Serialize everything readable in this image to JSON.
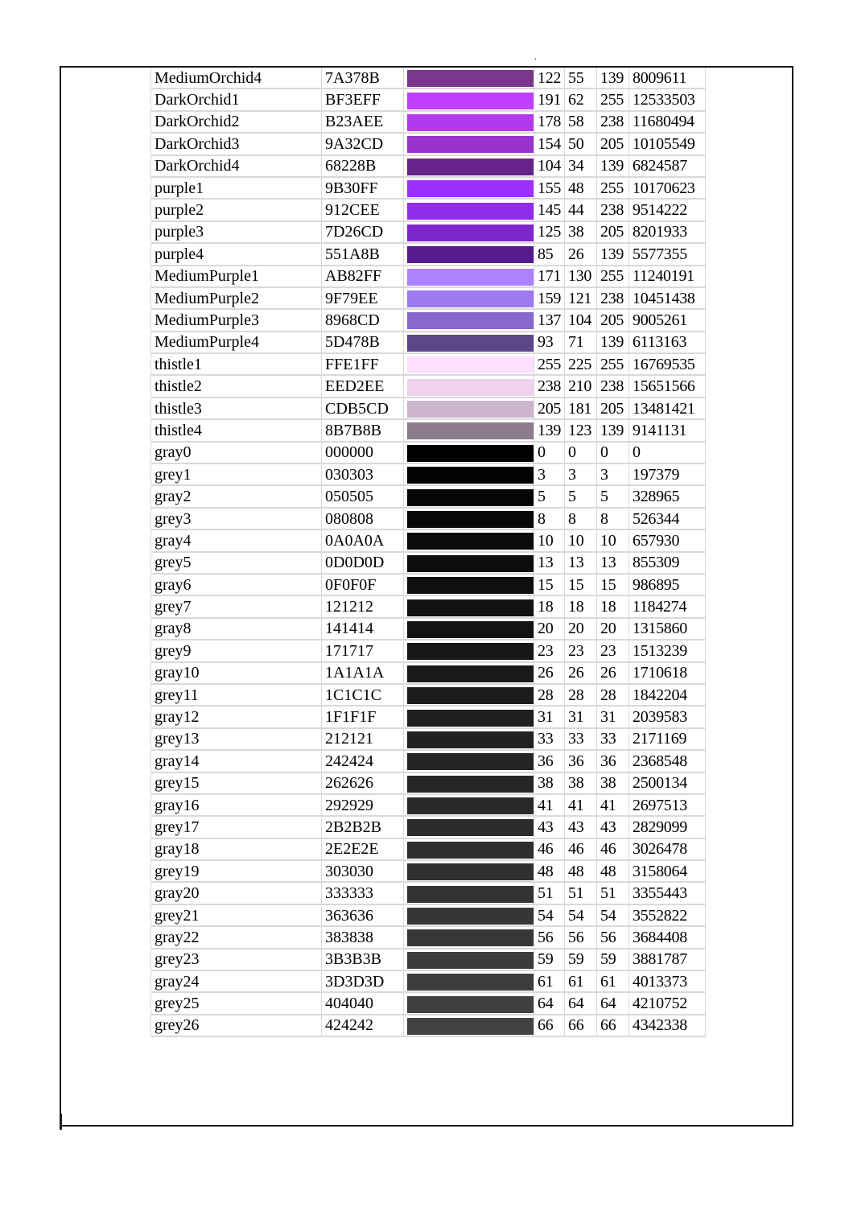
{
  "header_mark": ".",
  "colors": [
    {
      "name": "MediumOrchid4",
      "hex": "7A378B",
      "r": "122",
      "g": "55",
      "b": "139",
      "dec": "8009611",
      "swatch": "#7A378B"
    },
    {
      "name": "DarkOrchid1",
      "hex": "BF3EFF",
      "r": "191",
      "g": "62",
      "b": "255",
      "dec": "12533503",
      "swatch": "#BF3EFF"
    },
    {
      "name": "DarkOrchid2",
      "hex": "B23AEE",
      "r": "178",
      "g": "58",
      "b": "238",
      "dec": "11680494",
      "swatch": "#B23AEE"
    },
    {
      "name": "DarkOrchid3",
      "hex": "9A32CD",
      "r": "154",
      "g": "50",
      "b": "205",
      "dec": "10105549",
      "swatch": "#9A32CD"
    },
    {
      "name": "DarkOrchid4",
      "hex": "68228B",
      "r": "104",
      "g": "34",
      "b": "139",
      "dec": "6824587",
      "swatch": "#68228B"
    },
    {
      "name": "purple1",
      "hex": "9B30FF",
      "r": "155",
      "g": "48",
      "b": "255",
      "dec": "10170623",
      "swatch": "#9B30FF"
    },
    {
      "name": "purple2",
      "hex": "912CEE",
      "r": "145",
      "g": "44",
      "b": "238",
      "dec": "9514222",
      "swatch": "#912CEE"
    },
    {
      "name": "purple3",
      "hex": "7D26CD",
      "r": "125",
      "g": "38",
      "b": "205",
      "dec": "8201933",
      "swatch": "#7D26CD"
    },
    {
      "name": "purple4",
      "hex": "551A8B",
      "r": "85",
      "g": "26",
      "b": "139",
      "dec": "5577355",
      "swatch": "#551A8B"
    },
    {
      "name": "MediumPurple1",
      "hex": "AB82FF",
      "r": "171",
      "g": "130",
      "b": "255",
      "dec": "11240191",
      "swatch": "#AB82FF"
    },
    {
      "name": "MediumPurple2",
      "hex": "9F79EE",
      "r": "159",
      "g": "121",
      "b": "238",
      "dec": "10451438",
      "swatch": "#9F79EE"
    },
    {
      "name": "MediumPurple3",
      "hex": "8968CD",
      "r": "137",
      "g": "104",
      "b": "205",
      "dec": "9005261",
      "swatch": "#8968CD"
    },
    {
      "name": "MediumPurple4",
      "hex": "5D478B",
      "r": "93",
      "g": "71",
      "b": "139",
      "dec": "6113163",
      "swatch": "#5D478B"
    },
    {
      "name": "thistle1",
      "hex": "FFE1FF",
      "r": "255",
      "g": "225",
      "b": "255",
      "dec": "16769535",
      "swatch": "#FFE1FF"
    },
    {
      "name": "thistle2",
      "hex": "EED2EE",
      "r": "238",
      "g": "210",
      "b": "238",
      "dec": "15651566",
      "swatch": "#EED2EE"
    },
    {
      "name": "thistle3",
      "hex": "CDB5CD",
      "r": "205",
      "g": "181",
      "b": "205",
      "dec": "13481421",
      "swatch": "#CDB5CD"
    },
    {
      "name": "thistle4",
      "hex": "8B7B8B",
      "r": "139",
      "g": "123",
      "b": "139",
      "dec": "9141131",
      "swatch": "#8B7B8B"
    },
    {
      "name": "gray0",
      "hex": "000000",
      "r": "0",
      "g": "0",
      "b": "0",
      "dec": "0",
      "swatch": "#000000"
    },
    {
      "name": "grey1",
      "hex": "030303",
      "r": "3",
      "g": "3",
      "b": "3",
      "dec": "197379",
      "swatch": "#030303"
    },
    {
      "name": "gray2",
      "hex": "050505",
      "r": "5",
      "g": "5",
      "b": "5",
      "dec": "328965",
      "swatch": "#050505"
    },
    {
      "name": "grey3",
      "hex": "080808",
      "r": "8",
      "g": "8",
      "b": "8",
      "dec": "526344",
      "swatch": "#080808"
    },
    {
      "name": "gray4",
      "hex": "0A0A0A",
      "r": "10",
      "g": "10",
      "b": "10",
      "dec": "657930",
      "swatch": "#0A0A0A"
    },
    {
      "name": "grey5",
      "hex": "0D0D0D",
      "r": "13",
      "g": "13",
      "b": "13",
      "dec": "855309",
      "swatch": "#0D0D0D"
    },
    {
      "name": "gray6",
      "hex": "0F0F0F",
      "r": "15",
      "g": "15",
      "b": "15",
      "dec": "986895",
      "swatch": "#0F0F0F"
    },
    {
      "name": "grey7",
      "hex": "121212",
      "r": "18",
      "g": "18",
      "b": "18",
      "dec": "1184274",
      "swatch": "#121212"
    },
    {
      "name": "gray8",
      "hex": "141414",
      "r": "20",
      "g": "20",
      "b": "20",
      "dec": "1315860",
      "swatch": "#141414"
    },
    {
      "name": "grey9",
      "hex": "171717",
      "r": "23",
      "g": "23",
      "b": "23",
      "dec": "1513239",
      "swatch": "#171717"
    },
    {
      "name": "gray10",
      "hex": "1A1A1A",
      "r": "26",
      "g": "26",
      "b": "26",
      "dec": "1710618",
      "swatch": "#1A1A1A"
    },
    {
      "name": "grey11",
      "hex": "1C1C1C",
      "r": "28",
      "g": "28",
      "b": "28",
      "dec": "1842204",
      "swatch": "#1C1C1C"
    },
    {
      "name": "gray12",
      "hex": "1F1F1F",
      "r": "31",
      "g": "31",
      "b": "31",
      "dec": "2039583",
      "swatch": "#1F1F1F"
    },
    {
      "name": "grey13",
      "hex": "212121",
      "r": "33",
      "g": "33",
      "b": "33",
      "dec": "2171169",
      "swatch": "#212121"
    },
    {
      "name": "gray14",
      "hex": "242424",
      "r": "36",
      "g": "36",
      "b": "36",
      "dec": "2368548",
      "swatch": "#242424"
    },
    {
      "name": "grey15",
      "hex": "262626",
      "r": "38",
      "g": "38",
      "b": "38",
      "dec": "2500134",
      "swatch": "#262626"
    },
    {
      "name": "gray16",
      "hex": "292929",
      "r": "41",
      "g": "41",
      "b": "41",
      "dec": "2697513",
      "swatch": "#292929"
    },
    {
      "name": "grey17",
      "hex": "2B2B2B",
      "r": "43",
      "g": "43",
      "b": "43",
      "dec": "2829099",
      "swatch": "#2B2B2B"
    },
    {
      "name": "gray18",
      "hex": "2E2E2E",
      "r": "46",
      "g": "46",
      "b": "46",
      "dec": "3026478",
      "swatch": "#2E2E2E"
    },
    {
      "name": "grey19",
      "hex": "303030",
      "r": "48",
      "g": "48",
      "b": "48",
      "dec": "3158064",
      "swatch": "#303030"
    },
    {
      "name": "gray20",
      "hex": "333333",
      "r": "51",
      "g": "51",
      "b": "51",
      "dec": "3355443",
      "swatch": "#333333"
    },
    {
      "name": "grey21",
      "hex": "363636",
      "r": "54",
      "g": "54",
      "b": "54",
      "dec": "3552822",
      "swatch": "#363636"
    },
    {
      "name": "gray22",
      "hex": "383838",
      "r": "56",
      "g": "56",
      "b": "56",
      "dec": "3684408",
      "swatch": "#383838"
    },
    {
      "name": "grey23",
      "hex": "3B3B3B",
      "r": "59",
      "g": "59",
      "b": "59",
      "dec": "3881787",
      "swatch": "#3B3B3B"
    },
    {
      "name": "gray24",
      "hex": "3D3D3D",
      "r": "61",
      "g": "61",
      "b": "61",
      "dec": "4013373",
      "swatch": "#3D3D3D"
    },
    {
      "name": "grey25",
      "hex": "404040",
      "r": "64",
      "g": "64",
      "b": "64",
      "dec": "4210752",
      "swatch": "#404040"
    },
    {
      "name": "grey26",
      "hex": "424242",
      "r": "66",
      "g": "66",
      "b": "66",
      "dec": "4342338",
      "swatch": "#424242"
    }
  ]
}
